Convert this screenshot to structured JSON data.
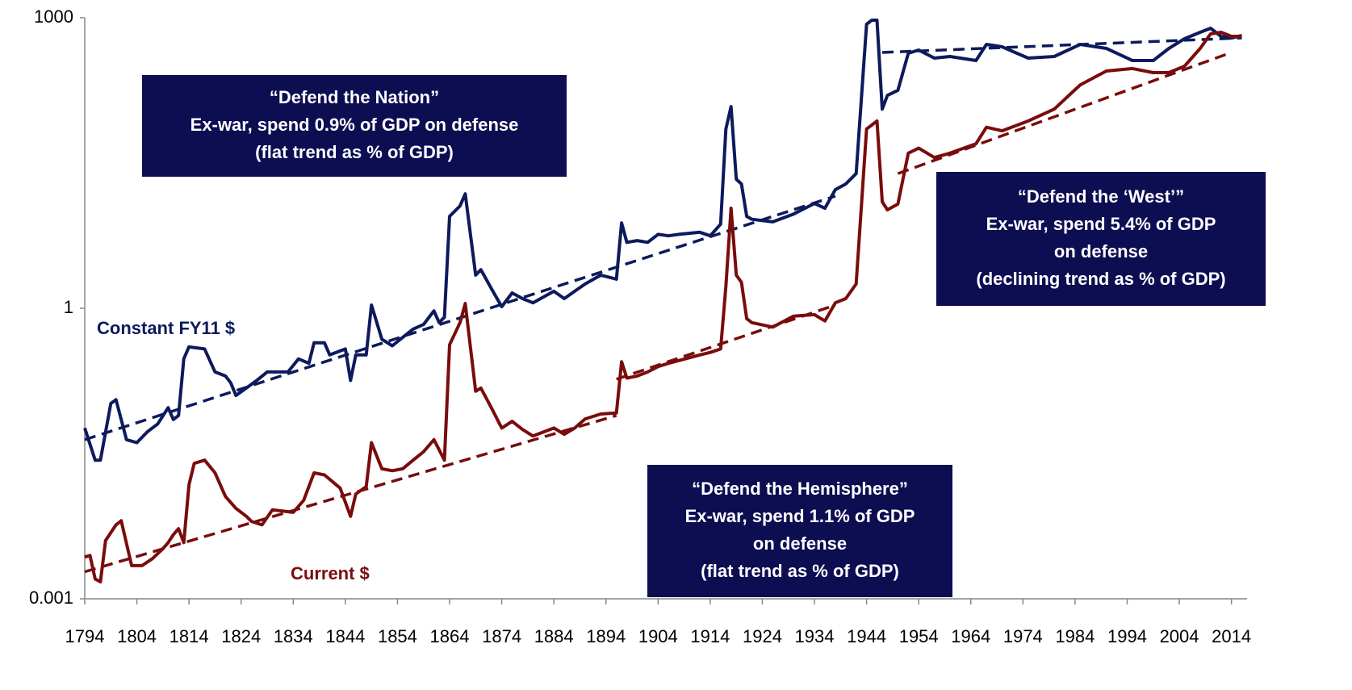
{
  "chart_data": {
    "type": "line",
    "log_scale_y": true,
    "xlim": [
      1794,
      2017
    ],
    "ylim": [
      0.001,
      1000
    ],
    "yticks": [
      0.001,
      1,
      1000
    ],
    "xticks": [
      1794,
      1804,
      1814,
      1824,
      1834,
      1844,
      1854,
      1864,
      1874,
      1884,
      1894,
      1904,
      1914,
      1924,
      1934,
      1944,
      1954,
      1964,
      1974,
      1984,
      1994,
      2004,
      2014
    ],
    "series": [
      {
        "name": "Constant FY11 $",
        "color": "#0d1a5c",
        "x": [
          1794,
          1796,
          1797,
          1799,
          1800,
          1802,
          1804,
          1806,
          1808,
          1810,
          1811,
          1812,
          1813,
          1814,
          1817,
          1819,
          1821,
          1822,
          1823,
          1825,
          1827,
          1829,
          1833,
          1835,
          1837,
          1838,
          1840,
          1841,
          1844,
          1845,
          1846,
          1848,
          1849,
          1851,
          1853,
          1855,
          1857,
          1859,
          1861,
          1862,
          1863,
          1864,
          1866,
          1867,
          1869,
          1870,
          1872,
          1874,
          1876,
          1878,
          1880,
          1884,
          1886,
          1888,
          1890,
          1893,
          1896,
          1897,
          1898,
          1900,
          1902,
          1904,
          1906,
          1908,
          1912,
          1914,
          1916,
          1917,
          1918,
          1919,
          1920,
          1921,
          1922,
          1926,
          1930,
          1934,
          1936,
          1938,
          1940,
          1942,
          1944,
          1945,
          1946,
          1947,
          1948,
          1950,
          1952,
          1954,
          1957,
          1960,
          1965,
          1967,
          1970,
          1975,
          1980,
          1985,
          1990,
          1995,
          1999,
          2002,
          2005,
          2008,
          2010,
          2012,
          2014,
          2016
        ],
        "values": [
          0.058,
          0.027,
          0.027,
          0.104,
          0.114,
          0.044,
          0.041,
          0.053,
          0.064,
          0.094,
          0.071,
          0.078,
          0.3,
          0.4,
          0.38,
          0.22,
          0.2,
          0.17,
          0.126,
          0.15,
          0.18,
          0.22,
          0.22,
          0.3,
          0.27,
          0.44,
          0.44,
          0.33,
          0.38,
          0.18,
          0.33,
          0.33,
          1.08,
          0.48,
          0.41,
          0.5,
          0.61,
          0.68,
          0.94,
          0.71,
          0.81,
          8.9,
          11.4,
          15.2,
          2.2,
          2.5,
          1.6,
          1.04,
          1.44,
          1.26,
          1.14,
          1.5,
          1.26,
          1.5,
          1.78,
          2.2,
          2.0,
          7.6,
          4.8,
          5.0,
          4.8,
          5.8,
          5.6,
          5.8,
          6.1,
          5.6,
          7.4,
          71,
          121,
          21.5,
          19.2,
          8.9,
          8.3,
          7.8,
          9.4,
          12.1,
          10.8,
          16.8,
          19.2,
          24.6,
          858,
          944,
          944,
          114,
          158,
          178,
          430,
          464,
          383,
          398,
          362,
          531,
          501,
          383,
          398,
          531,
          482,
          362,
          362,
          482,
          607,
          708,
          779,
          643,
          619,
          656
        ]
      },
      {
        "name": "Current $",
        "color": "#7a0c0c",
        "x": [
          1794,
          1795,
          1796,
          1797,
          1798,
          1800,
          1801,
          1803,
          1805,
          1807,
          1809,
          1810,
          1811,
          1812,
          1813,
          1814,
          1815,
          1817,
          1819,
          1821,
          1823,
          1825,
          1826,
          1828,
          1830,
          1834,
          1836,
          1838,
          1840,
          1843,
          1845,
          1846,
          1848,
          1849,
          1851,
          1853,
          1855,
          1857,
          1859,
          1861,
          1863,
          1864,
          1866,
          1867,
          1869,
          1870,
          1872,
          1874,
          1876,
          1878,
          1880,
          1884,
          1886,
          1888,
          1890,
          1893,
          1896,
          1897,
          1898,
          1900,
          1902,
          1904,
          1906,
          1912,
          1914,
          1916,
          1917,
          1918,
          1919,
          1920,
          1921,
          1922,
          1926,
          1930,
          1934,
          1936,
          1938,
          1940,
          1942,
          1944,
          1945,
          1946,
          1947,
          1948,
          1950,
          1952,
          1954,
          1957,
          1960,
          1965,
          1967,
          1970,
          1975,
          1980,
          1985,
          1990,
          1995,
          1999,
          2002,
          2005,
          2008,
          2010,
          2012,
          2014,
          2016
        ],
        "values": [
          0.0027,
          0.0028,
          0.0016,
          0.0015,
          0.004,
          0.0058,
          0.0064,
          0.0022,
          0.0022,
          0.0026,
          0.0033,
          0.0038,
          0.0046,
          0.0053,
          0.0038,
          0.015,
          0.025,
          0.027,
          0.02,
          0.0114,
          0.0086,
          0.0071,
          0.0063,
          0.0058,
          0.0083,
          0.0078,
          0.0104,
          0.02,
          0.019,
          0.0139,
          0.0071,
          0.0121,
          0.0144,
          0.041,
          0.022,
          0.021,
          0.022,
          0.027,
          0.033,
          0.044,
          0.027,
          0.42,
          0.71,
          1.12,
          0.139,
          0.15,
          0.094,
          0.058,
          0.068,
          0.056,
          0.048,
          0.058,
          0.05,
          0.058,
          0.072,
          0.081,
          0.083,
          0.28,
          0.19,
          0.2,
          0.22,
          0.25,
          0.27,
          0.33,
          0.35,
          0.38,
          1.68,
          10.8,
          2.2,
          1.85,
          0.78,
          0.71,
          0.64,
          0.83,
          0.86,
          0.74,
          1.14,
          1.26,
          1.78,
          71,
          78,
          86,
          12.6,
          10.4,
          11.9,
          40,
          45,
          36,
          40,
          50,
          74,
          68,
          86,
          114,
          203,
          282,
          299,
          271,
          271,
          316,
          482,
          681,
          708,
          643,
          643
        ]
      }
    ],
    "trend_lines": [
      {
        "color": "#0d1a5c",
        "x": [
          1794,
          1938
        ],
        "values": [
          0.044,
          14.4
        ]
      },
      {
        "color": "#0d1a5c",
        "x": [
          1947,
          2016
        ],
        "values": [
          438,
          619
        ]
      },
      {
        "color": "#7a0c0c",
        "x": [
          1794,
          1896
        ],
        "values": [
          0.0019,
          0.078
        ]
      },
      {
        "color": "#7a0c0c",
        "x": [
          1896,
          1938
        ],
        "values": [
          0.185,
          1.08
        ]
      },
      {
        "color": "#7a0c0c",
        "x": [
          1950,
          2014
        ],
        "values": [
          24.6,
          438
        ]
      }
    ],
    "annotations": [
      {
        "lines": [
          "“Defend the Nation”",
          "Ex-war, spend 0.9% of GDP on defense",
          "(flat trend as % of GDP)"
        ]
      },
      {
        "lines": [
          "“Defend the ‘West’”",
          "Ex-war, spend 5.4% of GDP",
          "on defense",
          "(declining trend as % of GDP)"
        ]
      },
      {
        "lines": [
          "“Defend the Hemisphere”",
          "Ex-war, spend 1.1% of GDP",
          "on defense",
          "(flat trend as % of GDP)"
        ]
      }
    ]
  }
}
